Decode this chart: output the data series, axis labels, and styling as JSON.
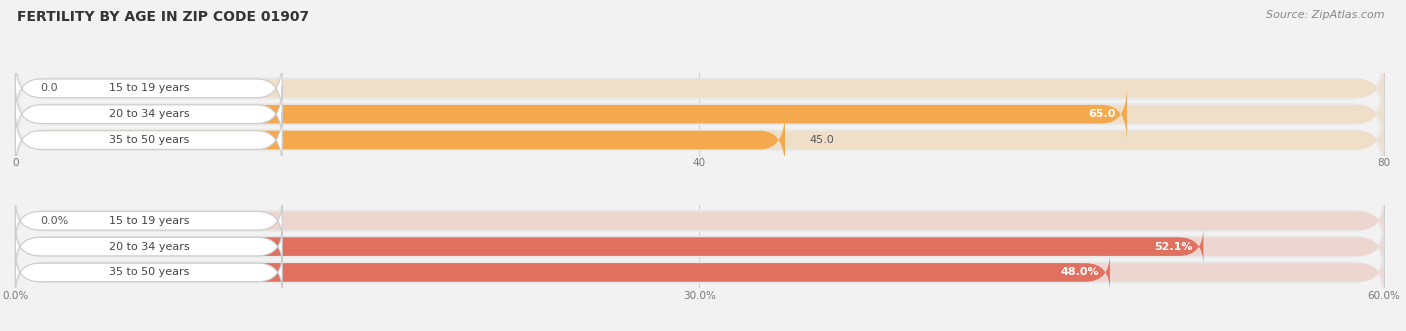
{
  "title": "FERTILITY BY AGE IN ZIP CODE 01907",
  "source": "Source: ZipAtlas.com",
  "top_group": {
    "categories": [
      "15 to 19 years",
      "20 to 34 years",
      "35 to 50 years"
    ],
    "values": [
      0.0,
      65.0,
      45.0
    ],
    "bar_color": "#F5A94E",
    "bar_bg_color": "#F0DFC8",
    "xlim": [
      0.0,
      80.0
    ],
    "xticks": [
      0.0,
      40.0,
      80.0
    ],
    "value_labels": [
      "0.0",
      "65.0",
      "45.0"
    ],
    "value_inside": [
      false,
      true,
      false
    ]
  },
  "bottom_group": {
    "categories": [
      "15 to 19 years",
      "20 to 34 years",
      "35 to 50 years"
    ],
    "values": [
      0.0,
      52.1,
      48.0
    ],
    "bar_color": "#E07060",
    "bar_bg_color": "#EDD5D0",
    "xlim": [
      0.0,
      60.0
    ],
    "xticks": [
      0.0,
      30.0,
      60.0
    ],
    "xtick_labels": [
      "0.0%",
      "30.0%",
      "60.0%"
    ],
    "value_labels": [
      "0.0%",
      "52.1%",
      "48.0%"
    ],
    "value_inside": [
      false,
      true,
      true
    ]
  },
  "bg_color": "#F2F2F2",
  "bar_bg_outer_color": "#E8E8E8",
  "label_text_color": "#444444",
  "bar_height": 0.72,
  "title_fontsize": 10,
  "label_fontsize": 8,
  "value_fontsize": 8,
  "axis_fontsize": 7.5,
  "source_fontsize": 8
}
